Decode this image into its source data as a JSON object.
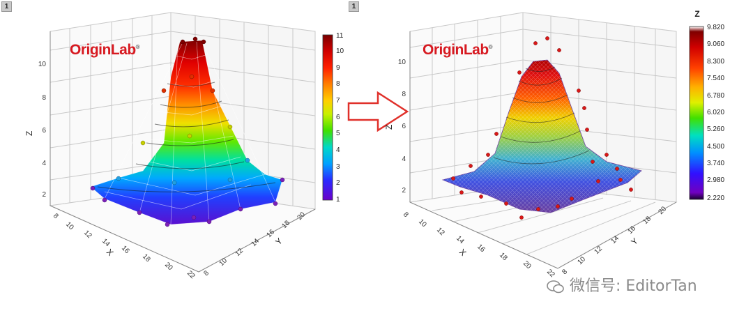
{
  "badges": {
    "left": "1",
    "right": "1"
  },
  "logo_text": "OriginLab",
  "logo_mark": "®",
  "watermark": "微信号: EditorTan",
  "chart_data": [
    {
      "type": "3d-surface",
      "title": "",
      "surface": "triangulated mesh with scatter points",
      "xlabel": "X",
      "ylabel": "Y",
      "zlabel": "Z",
      "x_ticks": [
        "8",
        "10",
        "12",
        "14",
        "16",
        "18",
        "20",
        "22"
      ],
      "y_ticks": [
        "8",
        "10",
        "12",
        "14",
        "16",
        "18",
        "20"
      ],
      "z_ticks": [
        "2",
        "4",
        "6",
        "8",
        "10"
      ],
      "zlim": [
        1,
        11
      ],
      "colorbar": {
        "title": "",
        "ticks": [
          "1",
          "2",
          "3",
          "4",
          "5",
          "6",
          "7",
          "8",
          "9",
          "10",
          "11"
        ]
      }
    },
    {
      "type": "3d-surface",
      "title": "",
      "surface": "fitted gaussian surface with original points",
      "xlabel": "X",
      "ylabel": "Y",
      "zlabel": "Z",
      "x_ticks": [
        "8",
        "10",
        "12",
        "14",
        "16",
        "18",
        "20",
        "22"
      ],
      "y_ticks": [
        "8",
        "10",
        "12",
        "14",
        "16",
        "18",
        "20"
      ],
      "z_ticks": [
        "2",
        "4",
        "6",
        "8",
        "10"
      ],
      "zlim": [
        2.22,
        9.82
      ],
      "colorbar": {
        "title": "Z",
        "ticks": [
          "9.820",
          "9.060",
          "8.300",
          "7.540",
          "6.780",
          "6.020",
          "5.260",
          "4.500",
          "3.740",
          "2.980",
          "2.220"
        ]
      }
    }
  ]
}
